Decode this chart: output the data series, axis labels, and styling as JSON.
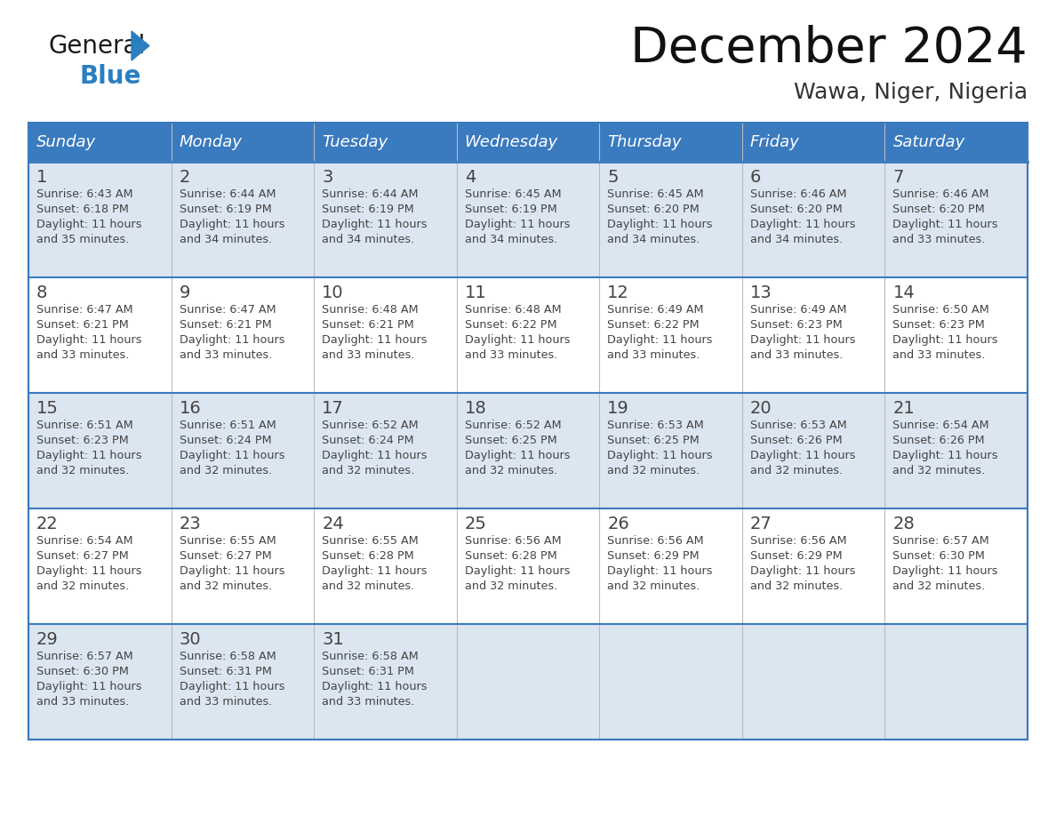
{
  "title": "December 2024",
  "subtitle": "Wawa, Niger, Nigeria",
  "days_of_week": [
    "Sunday",
    "Monday",
    "Tuesday",
    "Wednesday",
    "Thursday",
    "Friday",
    "Saturday"
  ],
  "header_bg": "#3a7abf",
  "header_text_color": "#ffffff",
  "cell_bg_odd": "#dce6f1",
  "cell_bg_even": "#ffffff",
  "border_color": "#3a7abf",
  "divider_color": "#aaaaaa",
  "text_color": "#444444",
  "title_color": "#111111",
  "subtitle_color": "#333333",
  "calendar_data": [
    [
      {
        "day": 1,
        "sunrise": "6:43 AM",
        "sunset": "6:18 PM",
        "daylight_l1": "11 hours",
        "daylight_l2": "and 35 minutes."
      },
      {
        "day": 2,
        "sunrise": "6:44 AM",
        "sunset": "6:19 PM",
        "daylight_l1": "11 hours",
        "daylight_l2": "and 34 minutes."
      },
      {
        "day": 3,
        "sunrise": "6:44 AM",
        "sunset": "6:19 PM",
        "daylight_l1": "11 hours",
        "daylight_l2": "and 34 minutes."
      },
      {
        "day": 4,
        "sunrise": "6:45 AM",
        "sunset": "6:19 PM",
        "daylight_l1": "11 hours",
        "daylight_l2": "and 34 minutes."
      },
      {
        "day": 5,
        "sunrise": "6:45 AM",
        "sunset": "6:20 PM",
        "daylight_l1": "11 hours",
        "daylight_l2": "and 34 minutes."
      },
      {
        "day": 6,
        "sunrise": "6:46 AM",
        "sunset": "6:20 PM",
        "daylight_l1": "11 hours",
        "daylight_l2": "and 34 minutes."
      },
      {
        "day": 7,
        "sunrise": "6:46 AM",
        "sunset": "6:20 PM",
        "daylight_l1": "11 hours",
        "daylight_l2": "and 33 minutes."
      }
    ],
    [
      {
        "day": 8,
        "sunrise": "6:47 AM",
        "sunset": "6:21 PM",
        "daylight_l1": "11 hours",
        "daylight_l2": "and 33 minutes."
      },
      {
        "day": 9,
        "sunrise": "6:47 AM",
        "sunset": "6:21 PM",
        "daylight_l1": "11 hours",
        "daylight_l2": "and 33 minutes."
      },
      {
        "day": 10,
        "sunrise": "6:48 AM",
        "sunset": "6:21 PM",
        "daylight_l1": "11 hours",
        "daylight_l2": "and 33 minutes."
      },
      {
        "day": 11,
        "sunrise": "6:48 AM",
        "sunset": "6:22 PM",
        "daylight_l1": "11 hours",
        "daylight_l2": "and 33 minutes."
      },
      {
        "day": 12,
        "sunrise": "6:49 AM",
        "sunset": "6:22 PM",
        "daylight_l1": "11 hours",
        "daylight_l2": "and 33 minutes."
      },
      {
        "day": 13,
        "sunrise": "6:49 AM",
        "sunset": "6:23 PM",
        "daylight_l1": "11 hours",
        "daylight_l2": "and 33 minutes."
      },
      {
        "day": 14,
        "sunrise": "6:50 AM",
        "sunset": "6:23 PM",
        "daylight_l1": "11 hours",
        "daylight_l2": "and 33 minutes."
      }
    ],
    [
      {
        "day": 15,
        "sunrise": "6:51 AM",
        "sunset": "6:23 PM",
        "daylight_l1": "11 hours",
        "daylight_l2": "and 32 minutes."
      },
      {
        "day": 16,
        "sunrise": "6:51 AM",
        "sunset": "6:24 PM",
        "daylight_l1": "11 hours",
        "daylight_l2": "and 32 minutes."
      },
      {
        "day": 17,
        "sunrise": "6:52 AM",
        "sunset": "6:24 PM",
        "daylight_l1": "11 hours",
        "daylight_l2": "and 32 minutes."
      },
      {
        "day": 18,
        "sunrise": "6:52 AM",
        "sunset": "6:25 PM",
        "daylight_l1": "11 hours",
        "daylight_l2": "and 32 minutes."
      },
      {
        "day": 19,
        "sunrise": "6:53 AM",
        "sunset": "6:25 PM",
        "daylight_l1": "11 hours",
        "daylight_l2": "and 32 minutes."
      },
      {
        "day": 20,
        "sunrise": "6:53 AM",
        "sunset": "6:26 PM",
        "daylight_l1": "11 hours",
        "daylight_l2": "and 32 minutes."
      },
      {
        "day": 21,
        "sunrise": "6:54 AM",
        "sunset": "6:26 PM",
        "daylight_l1": "11 hours",
        "daylight_l2": "and 32 minutes."
      }
    ],
    [
      {
        "day": 22,
        "sunrise": "6:54 AM",
        "sunset": "6:27 PM",
        "daylight_l1": "11 hours",
        "daylight_l2": "and 32 minutes."
      },
      {
        "day": 23,
        "sunrise": "6:55 AM",
        "sunset": "6:27 PM",
        "daylight_l1": "11 hours",
        "daylight_l2": "and 32 minutes."
      },
      {
        "day": 24,
        "sunrise": "6:55 AM",
        "sunset": "6:28 PM",
        "daylight_l1": "11 hours",
        "daylight_l2": "and 32 minutes."
      },
      {
        "day": 25,
        "sunrise": "6:56 AM",
        "sunset": "6:28 PM",
        "daylight_l1": "11 hours",
        "daylight_l2": "and 32 minutes."
      },
      {
        "day": 26,
        "sunrise": "6:56 AM",
        "sunset": "6:29 PM",
        "daylight_l1": "11 hours",
        "daylight_l2": "and 32 minutes."
      },
      {
        "day": 27,
        "sunrise": "6:56 AM",
        "sunset": "6:29 PM",
        "daylight_l1": "11 hours",
        "daylight_l2": "and 32 minutes."
      },
      {
        "day": 28,
        "sunrise": "6:57 AM",
        "sunset": "6:30 PM",
        "daylight_l1": "11 hours",
        "daylight_l2": "and 32 minutes."
      }
    ],
    [
      {
        "day": 29,
        "sunrise": "6:57 AM",
        "sunset": "6:30 PM",
        "daylight_l1": "11 hours",
        "daylight_l2": "and 33 minutes."
      },
      {
        "day": 30,
        "sunrise": "6:58 AM",
        "sunset": "6:31 PM",
        "daylight_l1": "11 hours",
        "daylight_l2": "and 33 minutes."
      },
      {
        "day": 31,
        "sunrise": "6:58 AM",
        "sunset": "6:31 PM",
        "daylight_l1": "11 hours",
        "daylight_l2": "and 33 minutes."
      },
      null,
      null,
      null,
      null
    ]
  ],
  "logo_general_color": "#1a1a1a",
  "logo_blue_color": "#2a7fc1",
  "logo_triangle_color": "#2a7fc1",
  "fig_width": 11.88,
  "fig_height": 9.18,
  "dpi": 100
}
